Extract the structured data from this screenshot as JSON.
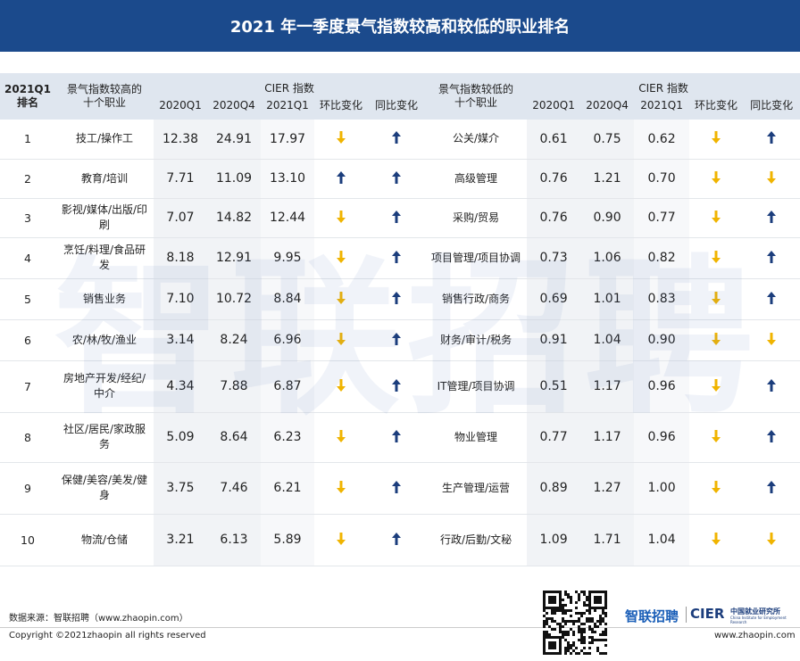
{
  "header": {
    "title": "2021 年一季度景气指数较高和较低的职业排名"
  },
  "table": {
    "head": {
      "rank": [
        "2021Q1",
        "排名"
      ],
      "high": [
        "景气指数较高的",
        "十个职业"
      ],
      "low": [
        "景气指数较低的",
        "十个职业"
      ],
      "cier": "CIER 指数",
      "cols": [
        "2020Q1",
        "2020Q4",
        "2021Q1",
        "环比变化",
        "同比变化"
      ]
    },
    "rows": [
      [
        "1",
        "技工/操作工",
        "12.38",
        "24.91",
        "17.97",
        "公关/媒介",
        "0.61",
        "0.75",
        "0.62"
      ],
      [
        "2",
        "教育/培训",
        "7.71",
        "11.09",
        "13.10",
        "高级管理",
        "0.76",
        "1.21",
        "0.70"
      ],
      [
        "3",
        "影视/媒体/出版/印刷",
        "7.07",
        "14.82",
        "12.44",
        "采购/贸易",
        "0.76",
        "0.90",
        "0.77"
      ],
      [
        "4",
        "烹饪/料理/食品研发",
        "8.18",
        "12.91",
        "9.95",
        "项目管理/项目协调",
        "0.73",
        "1.06",
        "0.82"
      ],
      [
        "5",
        "销售业务",
        "7.10",
        "10.72",
        "8.84",
        "销售行政/商务",
        "0.69",
        "1.01",
        "0.83"
      ],
      [
        "6",
        "农/林/牧/渔业",
        "3.14",
        "8.24",
        "6.96",
        "财务/审计/税务",
        "0.91",
        "1.04",
        "0.90"
      ],
      [
        "7",
        "房地产开发/经纪/中介",
        "4.34",
        "7.88",
        "6.87",
        "IT管理/项目协调",
        "0.51",
        "1.17",
        "0.96"
      ],
      [
        "8",
        "社区/居民/家政服务",
        "5.09",
        "8.64",
        "6.23",
        "物业管理",
        "0.77",
        "1.17",
        "0.96"
      ],
      [
        "9",
        "保健/美容/美发/健身",
        "3.75",
        "7.46",
        "6.21",
        "生产管理/运营",
        "0.89",
        "1.27",
        "1.00"
      ],
      [
        "10",
        "物流/仓储",
        "3.21",
        "6.13",
        "5.89",
        "行政/后勤/文秘",
        "1.09",
        "1.71",
        "1.04"
      ]
    ]
  },
  "watermark": "智联招聘",
  "footer": {
    "source": "数据来源：智联招聘（www.zhaopin.com）",
    "copyright": "Copyright ©2021zhaopin all rights reserved",
    "logo": "智联招聘",
    "cier": "CIER",
    "cier_cn": "中国就业研究所",
    "cier_en": "China Institute for Employment Research",
    "url": "www.zhaopin.com"
  }
}
